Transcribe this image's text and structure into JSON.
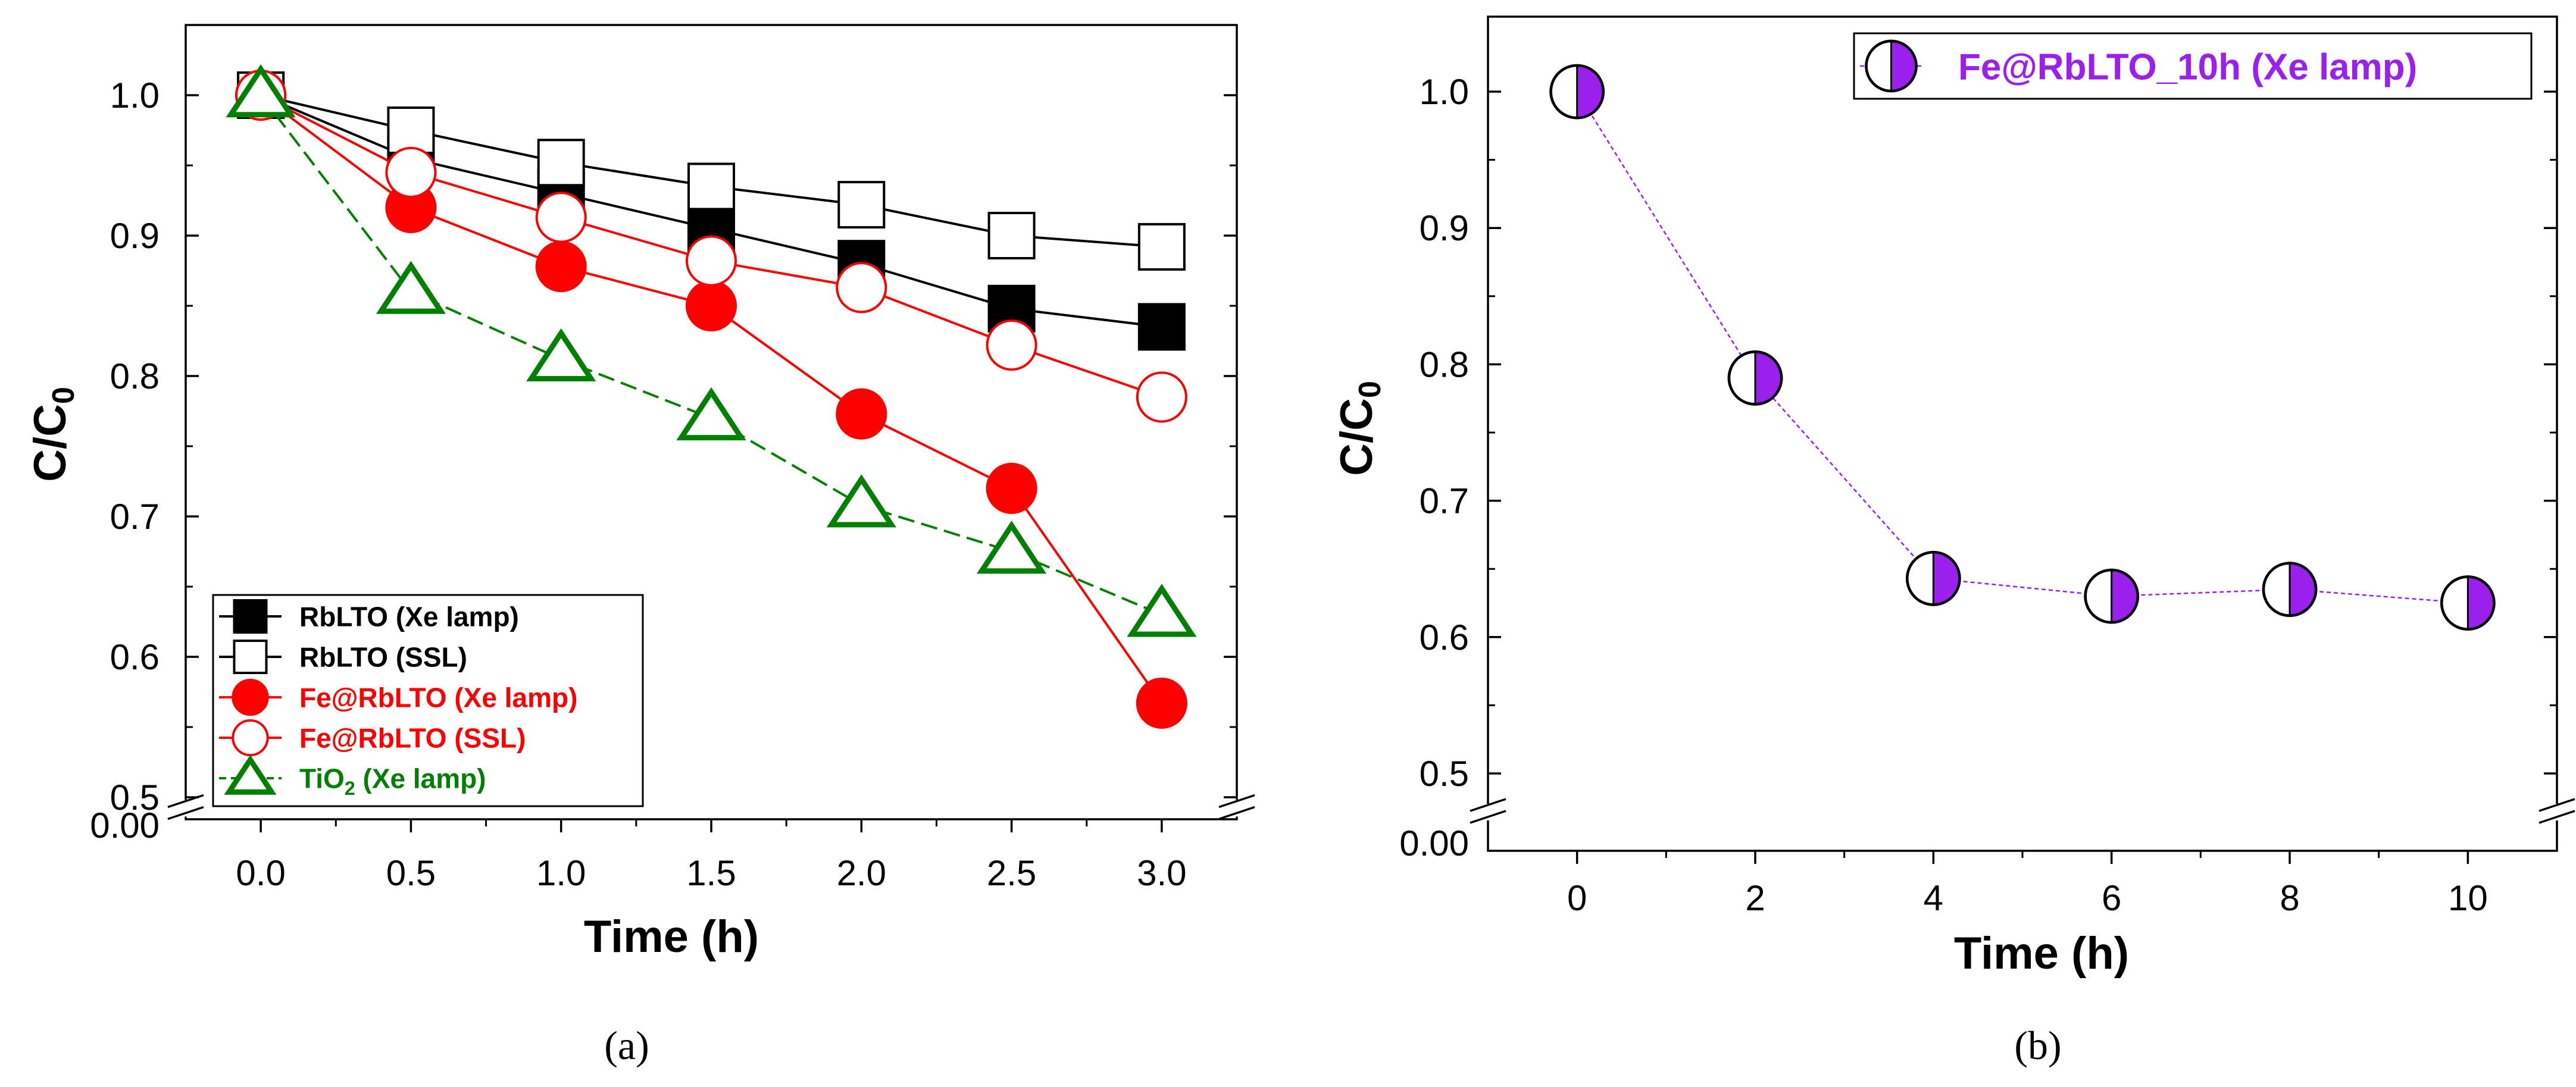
{
  "chart_data": [
    {
      "panel": "(a)",
      "type": "line",
      "xlabel": "Time (h)",
      "ylabel_main": "C/C",
      "ylabel_sub": "0",
      "x_ticks": [
        0.0,
        0.5,
        1.0,
        1.5,
        2.0,
        2.5,
        3.0
      ],
      "x_tick_labels": [
        "0.0",
        "0.5",
        "1.0",
        "1.5",
        "2.0",
        "2.5",
        "3.0"
      ],
      "xlim": [
        -0.25,
        3.25
      ],
      "ylim": [
        0.5,
        1.05
      ],
      "y_ticks": [
        0.5,
        0.6,
        0.7,
        0.8,
        0.9,
        1.0
      ],
      "y_tick_labels": [
        "0.5",
        "0.6",
        "0.7",
        "0.8",
        "0.9",
        "1.0"
      ],
      "axis_break": true,
      "break_bottom_label": "0.00",
      "legend_position": "bottom-left",
      "series": [
        {
          "name": "RbLTO (Xe lamp)",
          "legend_main": "RbLTO (Xe lamp)",
          "legend_sub": "",
          "legend_tail": "",
          "color": "#000000",
          "marker": "square-filled",
          "dashed": false,
          "x": [
            0.0,
            0.5,
            1.0,
            1.5,
            2.0,
            2.5,
            3.0
          ],
          "values": [
            1.0,
            0.955,
            0.93,
            0.905,
            0.88,
            0.848,
            0.835
          ]
        },
        {
          "name": "RbLTO (SSL)",
          "legend_main": "RbLTO (SSL)",
          "legend_sub": "",
          "legend_tail": "",
          "color": "#000000",
          "marker": "square-open",
          "dashed": false,
          "x": [
            0.0,
            0.5,
            1.0,
            1.5,
            2.0,
            2.5,
            3.0
          ],
          "values": [
            1.0,
            0.975,
            0.952,
            0.935,
            0.922,
            0.9,
            0.892
          ]
        },
        {
          "name": "Fe@RbLTO (Xe lamp)",
          "legend_main": "Fe@RbLTO (Xe lamp)",
          "legend_sub": "",
          "legend_tail": "",
          "color": "#ff0000",
          "marker": "circle-filled",
          "dashed": false,
          "x": [
            0.0,
            0.5,
            1.0,
            1.5,
            2.0,
            2.5,
            3.0
          ],
          "values": [
            1.0,
            0.92,
            0.878,
            0.85,
            0.773,
            0.72,
            0.567
          ]
        },
        {
          "name": "Fe@RbLTO (SSL)",
          "legend_main": "Fe@RbLTO (SSL)",
          "legend_sub": "",
          "legend_tail": "",
          "color": "#ff0000",
          "marker": "circle-open",
          "dashed": false,
          "x": [
            0.0,
            0.5,
            1.0,
            1.5,
            2.0,
            2.5,
            3.0
          ],
          "values": [
            1.0,
            0.945,
            0.913,
            0.882,
            0.863,
            0.822,
            0.785
          ]
        },
        {
          "name": "TiO2 (Xe lamp)",
          "legend_main": "TiO",
          "legend_sub": "2",
          "legend_tail": " (Xe lamp)",
          "color": "#008000",
          "marker": "triangle-open",
          "dashed": true,
          "x": [
            0.0,
            0.5,
            1.0,
            1.5,
            2.0,
            2.5,
            3.0
          ],
          "values": [
            1.0,
            0.86,
            0.812,
            0.77,
            0.708,
            0.675,
            0.63
          ]
        }
      ]
    },
    {
      "panel": "(b)",
      "type": "line",
      "xlabel": "Time (h)",
      "ylabel_main": "C/C",
      "ylabel_sub": "0",
      "x_ticks": [
        0,
        2,
        4,
        6,
        8,
        10
      ],
      "x_tick_labels": [
        "0",
        "2",
        "4",
        "6",
        "8",
        "10"
      ],
      "xlim": [
        -1,
        11
      ],
      "ylim": [
        0.5,
        1.055
      ],
      "y_ticks": [
        0.5,
        0.6,
        0.7,
        0.8,
        0.9,
        1.0
      ],
      "y_tick_labels": [
        "0.5",
        "0.6",
        "0.7",
        "0.8",
        "0.9",
        "1.0"
      ],
      "axis_break": true,
      "break_bottom_label": "0.00",
      "legend_position": "top-right",
      "series": [
        {
          "name": "Fe@RbLTO_10h (Xe lamp)",
          "legend_main": "Fe@RbLTO_10h (Xe lamp)",
          "legend_sub": "",
          "legend_tail": "",
          "color": "#9b20ee",
          "marker": "circle-half",
          "dashed": true,
          "x": [
            0,
            2,
            4,
            6,
            8,
            10
          ],
          "values": [
            1.0,
            0.79,
            0.643,
            0.63,
            0.635,
            0.625
          ]
        }
      ]
    }
  ]
}
